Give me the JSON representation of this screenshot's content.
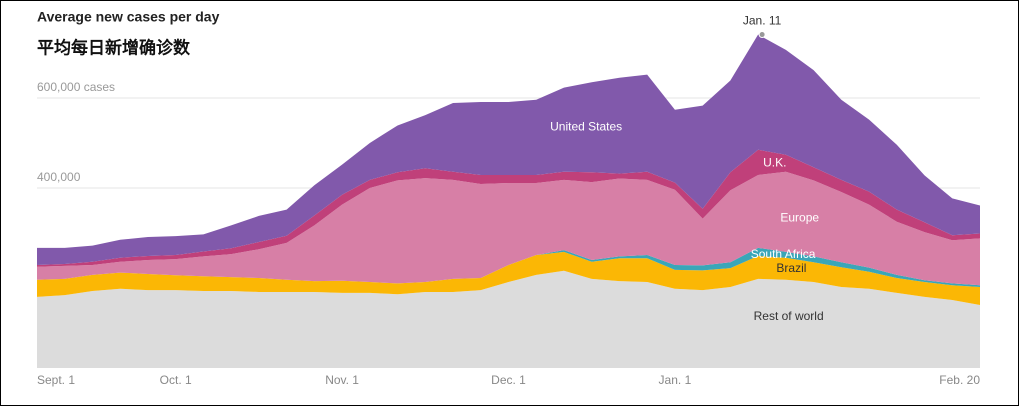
{
  "chart_data": {
    "type": "stacked-area",
    "title": "Average new cases per day",
    "subtitle": "平均每日新增确诊数",
    "annotation": "Jan. 11",
    "categories": [
      "Sept. 1",
      null,
      null,
      null,
      null,
      "Oct. 1",
      null,
      null,
      null,
      null,
      null,
      "Nov. 1",
      null,
      null,
      null,
      null,
      null,
      "Dec. 1",
      null,
      null,
      null,
      null,
      null,
      "Jan. 1",
      null,
      null,
      null,
      null,
      null,
      null,
      null,
      null,
      null,
      null,
      "Feb. 20"
    ],
    "ylim": [
      0,
      800000
    ],
    "yticks": [
      {
        "value": 400000,
        "label": "400,000"
      },
      {
        "value": 600000,
        "label": "600,000 cases"
      }
    ],
    "grid": true,
    "series": [
      {
        "name": "Rest of world",
        "color": "#dcdcdc",
        "values": [
          158000,
          162000,
          171000,
          176000,
          173000,
          173000,
          171000,
          171000,
          169000,
          169000,
          169000,
          167000,
          167000,
          164000,
          169000,
          169000,
          173000,
          191000,
          207000,
          216000,
          198000,
          193000,
          191000,
          176000,
          173000,
          180000,
          198000,
          196000,
          191000,
          180000,
          176000,
          167000,
          158000,
          151000,
          140000
        ]
      },
      {
        "name": "Brazil",
        "color": "#fbb705",
        "values": [
          38000,
          36000,
          36000,
          36000,
          36000,
          33000,
          33000,
          31000,
          31000,
          27000,
          24000,
          27000,
          24000,
          24000,
          22000,
          29000,
          27000,
          38000,
          44000,
          42000,
          38000,
          51000,
          53000,
          42000,
          44000,
          42000,
          51000,
          49000,
          44000,
          44000,
          38000,
          33000,
          33000,
          33000,
          40000
        ]
      },
      {
        "name": "South Africa",
        "color": "#3aa6b8",
        "values": [
          0,
          0,
          0,
          0,
          0,
          0,
          0,
          0,
          0,
          0,
          0,
          0,
          0,
          0,
          0,
          0,
          0,
          0,
          0,
          4000,
          4000,
          4000,
          7000,
          11000,
          11000,
          13000,
          18000,
          13000,
          13000,
          11000,
          9000,
          7000,
          4000,
          4000,
          4000
        ]
      },
      {
        "name": "Europe",
        "color": "#d77fa6",
        "values": [
          29000,
          29000,
          22000,
          24000,
          31000,
          36000,
          44000,
          51000,
          64000,
          82000,
          124000,
          169000,
          209000,
          229000,
          231000,
          220000,
          209000,
          182000,
          160000,
          156000,
          173000,
          173000,
          167000,
          167000,
          104000,
          160000,
          162000,
          178000,
          169000,
          156000,
          140000,
          118000,
          107000,
          96000,
          104000
        ]
      },
      {
        "name": "U.K.",
        "color": "#c0407a",
        "values": [
          4000,
          4000,
          7000,
          9000,
          9000,
          9000,
          11000,
          13000,
          16000,
          16000,
          22000,
          22000,
          18000,
          18000,
          22000,
          18000,
          20000,
          18000,
          18000,
          18000,
          22000,
          11000,
          18000,
          16000,
          22000,
          40000,
          56000,
          38000,
          29000,
          27000,
          29000,
          27000,
          22000,
          11000,
          11000
        ]
      },
      {
        "name": "United States",
        "color": "#8159ab",
        "values": [
          38000,
          36000,
          36000,
          40000,
          42000,
          42000,
          38000,
          51000,
          58000,
          58000,
          67000,
          67000,
          82000,
          104000,
          118000,
          153000,
          162000,
          162000,
          167000,
          187000,
          200000,
          213000,
          216000,
          162000,
          229000,
          204000,
          256000,
          233000,
          216000,
          178000,
          160000,
          144000,
          104000,
          82000,
          62000
        ]
      }
    ]
  }
}
